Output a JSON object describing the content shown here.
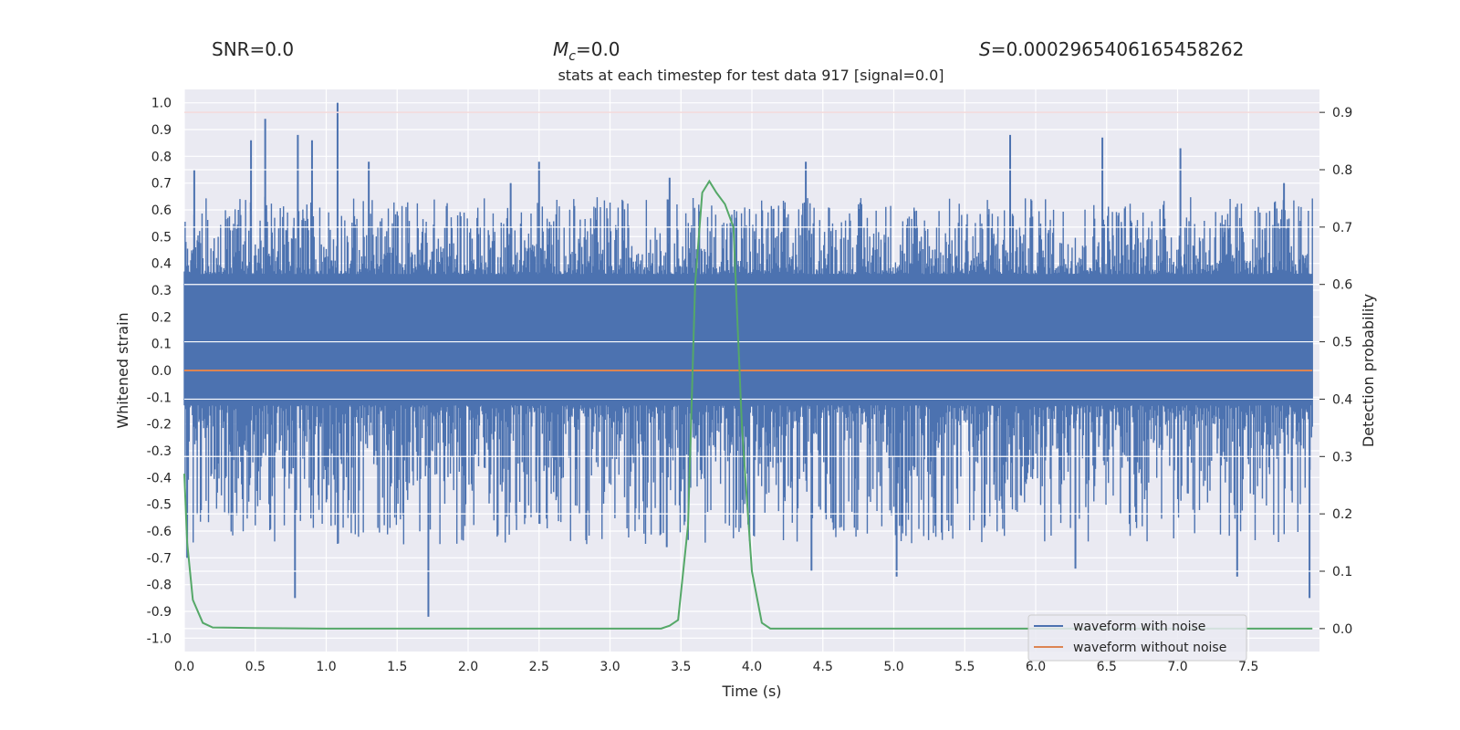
{
  "chart_data": {
    "type": "line",
    "title": "stats at each timestep for test data 917 [signal=0.0]",
    "header": {
      "snr": "SNR=0.0",
      "mc_symbol": "M",
      "mc_sub": "c",
      "mc_value": "=0.0",
      "s_symbol": "S",
      "s_value": "=0.0002965406165458262"
    },
    "xlabel": "Time (s)",
    "ylabel_left": "Whitened strain",
    "ylabel_right": "Detection probability",
    "xlim": [
      0.0,
      8.0
    ],
    "ylim_left": [
      -1.05,
      1.05
    ],
    "ylim_right": [
      -0.04,
      0.94
    ],
    "xticks": [
      "0.0",
      "0.5",
      "1.0",
      "1.5",
      "2.0",
      "2.5",
      "3.0",
      "3.5",
      "4.0",
      "4.5",
      "5.0",
      "5.5",
      "6.0",
      "6.5",
      "7.0",
      "7.5"
    ],
    "yticks_left": [
      "1.0",
      "0.9",
      "0.8",
      "0.7",
      "0.6",
      "0.5",
      "0.4",
      "0.3",
      "0.2",
      "0.1",
      "0.0",
      "-0.1",
      "-0.2",
      "-0.3",
      "-0.4",
      "-0.5",
      "-0.6",
      "-0.7",
      "-0.8",
      "-0.9",
      "-1.0"
    ],
    "yticks_right": [
      "0.9",
      "0.8",
      "0.7",
      "0.6",
      "0.5",
      "0.4",
      "0.3",
      "0.2",
      "0.1",
      "0.0"
    ],
    "threshold": 0.9,
    "legend": {
      "location": "lower-right",
      "entries": [
        "waveform with noise",
        "waveform without noise"
      ]
    },
    "series": [
      {
        "name": "waveform with noise",
        "axis": "left",
        "color": "#4c72b0",
        "description_kind": "dense noise envelope",
        "core_band": [
          -0.13,
          0.36
        ],
        "typical_peak_max": 0.6,
        "typical_peak_min": -0.6,
        "spikes": [
          {
            "x": 0.07,
            "y": 0.75
          },
          {
            "x": 0.47,
            "y": 0.86
          },
          {
            "x": 0.57,
            "y": 0.94
          },
          {
            "x": 0.8,
            "y": 0.88
          },
          {
            "x": 0.9,
            "y": 0.86
          },
          {
            "x": 1.08,
            "y": 1.0
          },
          {
            "x": 1.3,
            "y": 0.78
          },
          {
            "x": 2.3,
            "y": 0.7
          },
          {
            "x": 2.5,
            "y": 0.78
          },
          {
            "x": 3.42,
            "y": 0.72
          },
          {
            "x": 4.38,
            "y": 0.78
          },
          {
            "x": 5.82,
            "y": 0.88
          },
          {
            "x": 6.47,
            "y": 0.87
          },
          {
            "x": 7.02,
            "y": 0.83
          },
          {
            "x": 7.75,
            "y": 0.7
          },
          {
            "x": 0.78,
            "y": -0.85
          },
          {
            "x": 1.72,
            "y": -0.92
          },
          {
            "x": 4.42,
            "y": -0.75
          },
          {
            "x": 5.02,
            "y": -0.77
          },
          {
            "x": 6.28,
            "y": -0.74
          },
          {
            "x": 7.42,
            "y": -0.77
          },
          {
            "x": 7.93,
            "y": -0.85
          },
          {
            "x": 0.02,
            "y": -0.7
          },
          {
            "x": 3.4,
            "y": -0.66
          }
        ]
      },
      {
        "name": "waveform without noise",
        "axis": "left",
        "color": "#dd8452",
        "x": [
          0.0,
          7.95
        ],
        "y": [
          0.0,
          0.0
        ]
      },
      {
        "name": "detection probability",
        "axis": "right",
        "color": "#55a868",
        "x": [
          0.0,
          0.02,
          0.06,
          0.13,
          0.2,
          0.5,
          1.0,
          2.0,
          3.0,
          3.36,
          3.42,
          3.48,
          3.55,
          3.6,
          3.65,
          3.7,
          3.75,
          3.81,
          3.87,
          3.93,
          4.0,
          4.07,
          4.13,
          4.5,
          5.0,
          6.0,
          7.0,
          7.95
        ],
        "y": [
          0.27,
          0.15,
          0.05,
          0.01,
          0.002,
          0.001,
          0.0,
          0.0,
          0.0,
          0.0,
          0.005,
          0.015,
          0.18,
          0.6,
          0.76,
          0.78,
          0.76,
          0.74,
          0.7,
          0.35,
          0.1,
          0.01,
          0.0,
          0.0,
          0.0,
          0.0,
          0.0,
          0.0
        ]
      }
    ]
  }
}
